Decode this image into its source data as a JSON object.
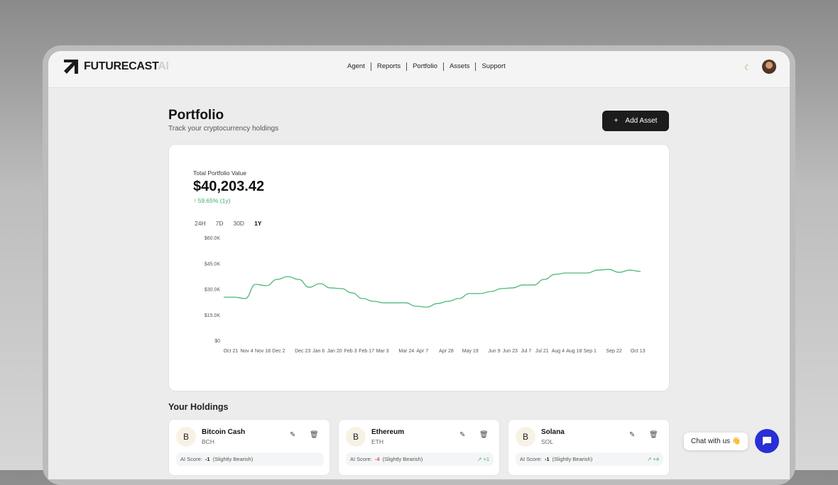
{
  "nav": {
    "brand": "FUTURECAST",
    "brand_suffix": "AI",
    "links": [
      "Agent",
      "Reports",
      "Portfolio",
      "Assets",
      "Support"
    ]
  },
  "page": {
    "title": "Portfolio",
    "subtitle": "Track your cryptocurrency holdings",
    "add_label": "Add Asset"
  },
  "summary": {
    "label": "Total Portfolio Value",
    "value": "$40,203.42",
    "change": "↑ 59.65% (1y)",
    "ranges": [
      "24H",
      "7D",
      "30D",
      "1Y"
    ],
    "active_range": "1Y"
  },
  "chart_data": {
    "type": "line",
    "color": "#4cb87a",
    "ylim": [
      0,
      60000
    ],
    "yticks": [
      "$0",
      "$15.0K",
      "$30.0K",
      "$45.0K",
      "$60.0K"
    ],
    "xticks": [
      "Oct 21",
      "Nov 4",
      "Nov 18",
      "Dec 2",
      "Dec 23",
      "Jan 6",
      "Jan 20",
      "Feb 3",
      "Feb 17",
      "Mar 3",
      "Mar 24",
      "Apr 7",
      "Apr 28",
      "May 19",
      "Jun 9",
      "Jun 23",
      "Jul 7",
      "Jul 21",
      "Aug 4",
      "Aug 18",
      "Sep 1",
      "Sep 22",
      "Oct 13"
    ],
    "values": [
      25200,
      25200,
      24400,
      32700,
      31900,
      35600,
      37200,
      35600,
      31000,
      33100,
      30600,
      30200,
      27700,
      24400,
      22800,
      21900,
      21900,
      21900,
      19900,
      19400,
      21500,
      22800,
      24400,
      27300,
      27300,
      28500,
      30200,
      30600,
      32300,
      32300,
      35600,
      38500,
      39300,
      39300,
      39300,
      41000,
      41400,
      39700,
      41000,
      40203
    ]
  },
  "holdings": {
    "title": "Your Holdings",
    "items": [
      {
        "icon": "B",
        "name": "Bitcoin Cash",
        "symbol": "BCH",
        "score_label": "AI Score:",
        "score": "-1",
        "sentiment": "(Slightly Bearish)",
        "trend": ""
      },
      {
        "icon": "B",
        "name": "Ethereum",
        "symbol": "ETH",
        "score_label": "AI Score:",
        "score": "-4",
        "sentiment": "(Slightly Bearish)",
        "trend": "↗ +1"
      },
      {
        "icon": "B",
        "name": "Solana",
        "symbol": "SOL",
        "score_label": "AI Score:",
        "score": "-1",
        "sentiment": "(Slightly Bearish)",
        "trend": "↗ +4"
      }
    ]
  },
  "chat": {
    "label": "Chat with us 👋"
  }
}
